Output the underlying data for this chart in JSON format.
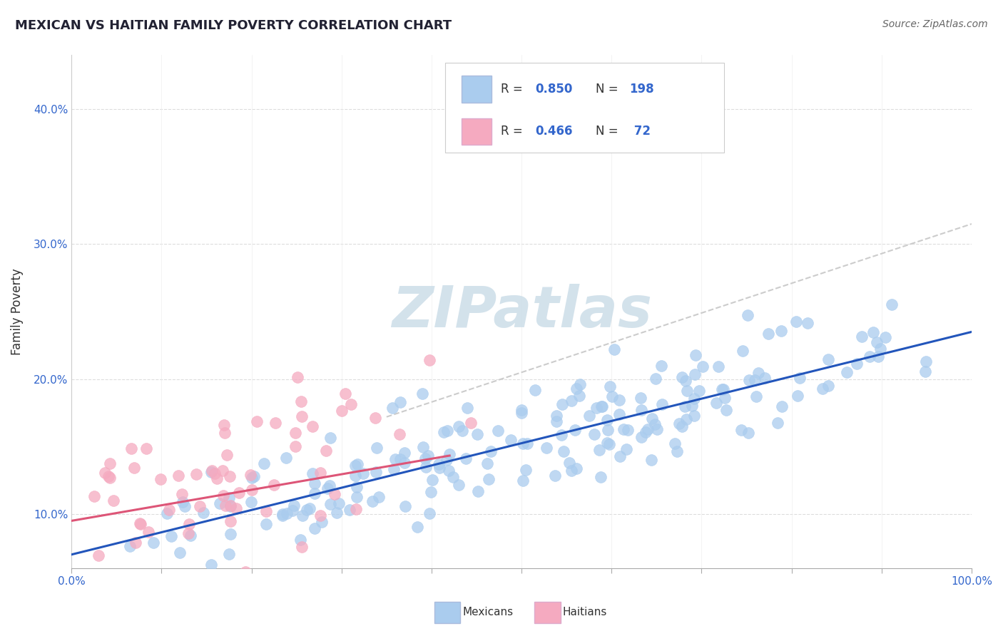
{
  "title": "MEXICAN VS HAITIAN FAMILY POVERTY CORRELATION CHART",
  "source_text": "Source: ZipAtlas.com",
  "ylabel": "Family Poverty",
  "xlim": [
    0.0,
    1.0
  ],
  "ylim": [
    0.06,
    0.44
  ],
  "x_ticks": [
    0.0,
    0.1,
    0.2,
    0.3,
    0.4,
    0.5,
    0.6,
    0.7,
    0.8,
    0.9,
    1.0
  ],
  "y_ticks": [
    0.1,
    0.2,
    0.3,
    0.4
  ],
  "x_tick_labels": [
    "0.0%",
    "",
    "",
    "",
    "",
    "",
    "",
    "",
    "",
    "",
    "100.0%"
  ],
  "y_tick_labels": [
    "10.0%",
    "20.0%",
    "30.0%",
    "40.0%"
  ],
  "mexicans_R": 0.85,
  "mexicans_N": 198,
  "haitians_R": 0.466,
  "haitians_N": 72,
  "mexican_color": "#aaccee",
  "haitian_color": "#f5aaC0",
  "mexican_line_color": "#2255bb",
  "haitian_line_color": "#dd5577",
  "dashed_line_color": "#cccccc",
  "background_color": "#ffffff",
  "title_color": "#222233",
  "source_color": "#666666",
  "watermark_color": "#ccdde8",
  "seed": 42,
  "mex_slope": 0.165,
  "mex_intercept": 0.07,
  "hai_slope": 0.115,
  "hai_intercept": 0.095,
  "dash_slope": 0.22,
  "dash_intercept": 0.095
}
